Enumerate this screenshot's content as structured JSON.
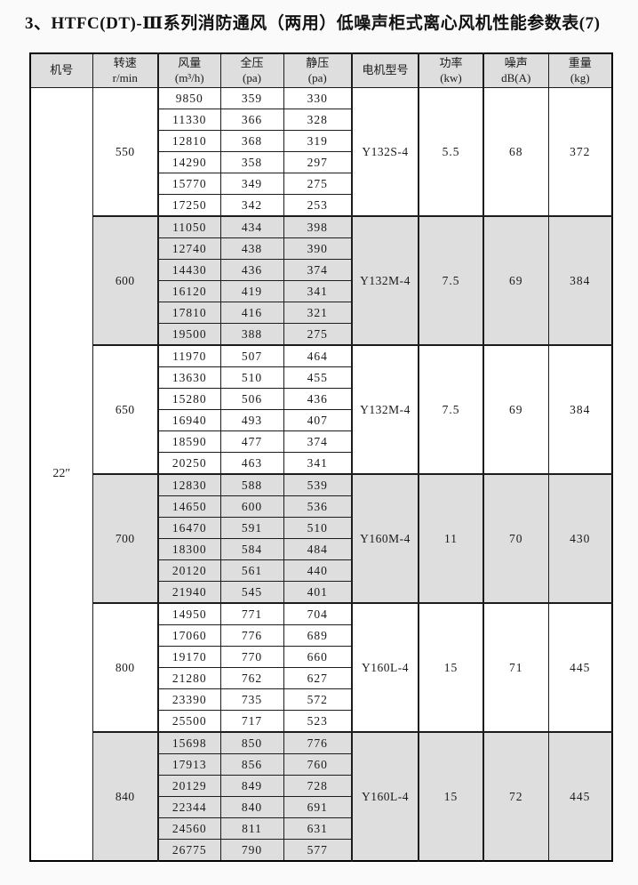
{
  "title": "3、HTFC(DT)-Ⅲ系列消防通风（两用）低噪声柜式离心风机性能参数表(7)",
  "colors": {
    "shaded_band": "#dedede",
    "cell_white": "#ffffff",
    "border": "#1c1c1c",
    "text": "#1a1a1a"
  },
  "table": {
    "headers": [
      {
        "line1": "机号",
        "line2": ""
      },
      {
        "line1": "转速",
        "line2": "r/min"
      },
      {
        "line1": "风量",
        "line2": "(m³/h)"
      },
      {
        "line1": "全压",
        "line2": "(pa)"
      },
      {
        "line1": "静压",
        "line2": "(pa)"
      },
      {
        "line1": "电机型号",
        "line2": ""
      },
      {
        "line1": "功率",
        "line2": "(kw)"
      },
      {
        "line1": "噪声",
        "line2": "dB(A)"
      },
      {
        "line1": "重量",
        "line2": "(kg)"
      }
    ],
    "machine_no": "22″",
    "groups": [
      {
        "speed": "550",
        "rows": [
          [
            9850,
            359,
            330
          ],
          [
            11330,
            366,
            328
          ],
          [
            12810,
            368,
            319
          ],
          [
            14290,
            358,
            297
          ],
          [
            15770,
            349,
            275
          ],
          [
            17250,
            342,
            253
          ]
        ],
        "motor": "Y132S-4",
        "power": "5.5",
        "noise": "68",
        "weight": "372",
        "shaded": false
      },
      {
        "speed": "600",
        "rows": [
          [
            11050,
            434,
            398
          ],
          [
            12740,
            438,
            390
          ],
          [
            14430,
            436,
            374
          ],
          [
            16120,
            419,
            341
          ],
          [
            17810,
            416,
            321
          ],
          [
            19500,
            388,
            275
          ]
        ],
        "motor": "Y132M-4",
        "power": "7.5",
        "noise": "69",
        "weight": "384",
        "shaded": true
      },
      {
        "speed": "650",
        "rows": [
          [
            11970,
            507,
            464
          ],
          [
            13630,
            510,
            455
          ],
          [
            15280,
            506,
            436
          ],
          [
            16940,
            493,
            407
          ],
          [
            18590,
            477,
            374
          ],
          [
            20250,
            463,
            341
          ]
        ],
        "motor": "Y132M-4",
        "power": "7.5",
        "noise": "69",
        "weight": "384",
        "shaded": false
      },
      {
        "speed": "700",
        "rows": [
          [
            12830,
            588,
            539
          ],
          [
            14650,
            600,
            536
          ],
          [
            16470,
            591,
            510
          ],
          [
            18300,
            584,
            484
          ],
          [
            20120,
            561,
            440
          ],
          [
            21940,
            545,
            401
          ]
        ],
        "motor": "Y160M-4",
        "power": "11",
        "noise": "70",
        "weight": "430",
        "shaded": true
      },
      {
        "speed": "800",
        "rows": [
          [
            14950,
            771,
            704
          ],
          [
            17060,
            776,
            689
          ],
          [
            19170,
            770,
            660
          ],
          [
            21280,
            762,
            627
          ],
          [
            23390,
            735,
            572
          ],
          [
            25500,
            717,
            523
          ]
        ],
        "motor": "Y160L-4",
        "power": "15",
        "noise": "71",
        "weight": "445",
        "shaded": false
      },
      {
        "speed": "840",
        "rows": [
          [
            15698,
            850,
            776
          ],
          [
            17913,
            856,
            760
          ],
          [
            20129,
            849,
            728
          ],
          [
            22344,
            840,
            691
          ],
          [
            24560,
            811,
            631
          ],
          [
            26775,
            790,
            577
          ]
        ],
        "motor": "Y160L-4",
        "power": "15",
        "noise": "72",
        "weight": "445",
        "shaded": true
      }
    ]
  }
}
